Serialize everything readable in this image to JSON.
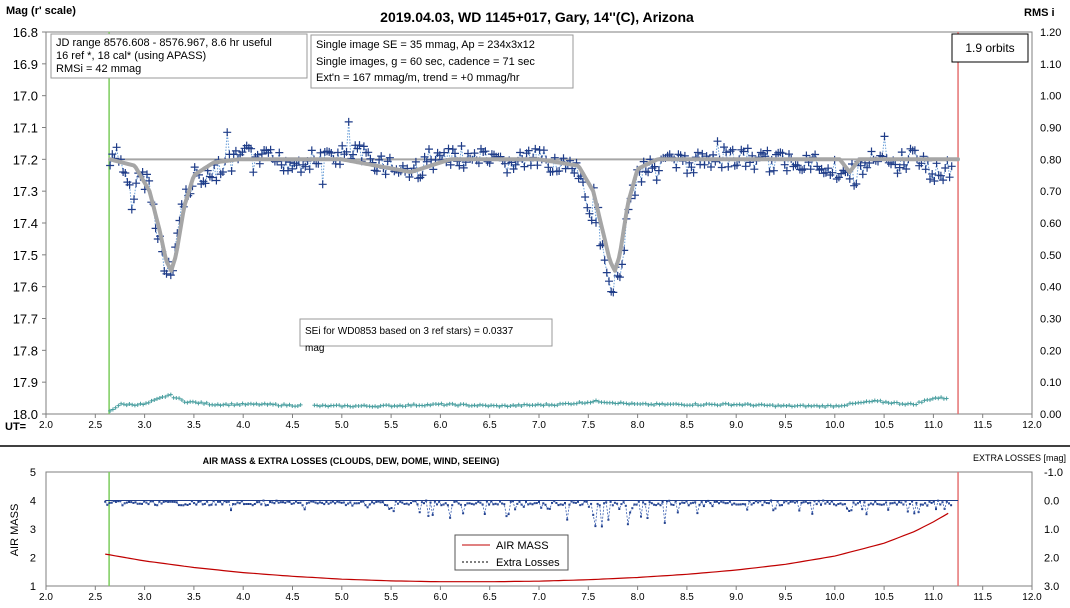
{
  "top": {
    "title": "2019.04.03, WD 1145+017, Gary, 14''(C), Arizona",
    "ylabel_left": "Mag (r' scale)",
    "ylabel_right": "RMS i",
    "ut_label": "UT=",
    "info_box_1": [
      "JD range 8576.608 - 8576.967, 8.6 hr useful",
      "16 ref *, 18 cal* (using APASS)",
      "RMSi = 42 mmag"
    ],
    "info_box_2": [
      "Single image SE = 35 mmag, Ap = 234x3x12",
      "Single images, g = 60 sec, cadence = 71 sec",
      "Ext'n = 167 mmag/m, trend = +0 mmag/hr"
    ],
    "orbits_box": "1.9 orbits",
    "sei_box": [
      "SEi for WD0853 based on 3 ref stars) = 0.0337",
      "mag"
    ]
  },
  "bottom": {
    "title": "AIR MASS & EXTRA LOSSES (CLOUDS, DEW, DOME, WIND, SEEING)",
    "ylabel_left": "AIR MASS",
    "ylabel_right": "EXTRA LOSSES [mag]",
    "legend": [
      "AIR MASS",
      "Extra Losses"
    ]
  },
  "chart_data": [
    {
      "type": "scatter",
      "title": "2019.04.03, WD 1145+017, Gary, 14''(C), Arizona",
      "xlabel": "UT=",
      "ylabel": "Mag (r' scale)",
      "y2label": "RMS i",
      "xlim": [
        2.0,
        12.0
      ],
      "ylim": [
        18.0,
        16.8
      ],
      "y2lim": [
        0.0,
        1.2
      ],
      "x_ticks": [
        "2.0",
        "2.5",
        "3.0",
        "3.5",
        "4.0",
        "4.5",
        "5.0",
        "5.5",
        "6.0",
        "6.5",
        "7.0",
        "7.5",
        "8.0",
        "8.5",
        "9.0",
        "9.5",
        "10.0",
        "10.5",
        "11.0",
        "11.5",
        "12.0"
      ],
      "y_ticks": [
        "16.8",
        "16.9",
        "17.0",
        "17.1",
        "17.2",
        "17.3",
        "17.4",
        "17.5",
        "17.6",
        "17.7",
        "17.8",
        "17.9",
        "18.0"
      ],
      "y2_ticks": [
        "1.20",
        "1.10",
        "1.00",
        "0.90",
        "0.80",
        "0.70",
        "0.60",
        "0.50",
        "0.40",
        "0.30",
        "0.20",
        "0.10",
        "0.00"
      ],
      "baseline_mag": 17.2,
      "start_marker_ut": 2.64,
      "end_marker_ut": 11.25,
      "series": [
        {
          "kind": "measurements",
          "note": "blue + markers joined by dotted line; values sampled",
          "x": [
            2.65,
            2.72,
            2.8,
            2.88,
            2.96,
            3.04,
            3.12,
            3.18,
            3.22,
            3.26,
            3.3,
            3.34,
            3.38,
            3.44,
            3.52,
            3.62,
            3.72,
            3.85,
            4.0,
            4.2,
            4.5,
            4.8,
            5.1,
            5.4,
            5.7,
            6.0,
            6.3,
            6.6,
            6.9,
            7.2,
            7.4,
            7.55,
            7.65,
            7.72,
            7.78,
            7.83,
            7.88,
            7.95,
            8.05,
            8.2,
            8.5,
            8.8,
            9.1,
            9.4,
            9.7,
            10.0,
            10.2,
            10.4,
            10.6,
            10.8,
            11.0,
            11.15
          ],
          "values": [
            17.22,
            17.19,
            17.24,
            17.3,
            17.25,
            17.27,
            17.4,
            17.5,
            17.58,
            17.56,
            17.5,
            17.42,
            17.35,
            17.29,
            17.25,
            17.27,
            17.24,
            17.22,
            17.19,
            17.2,
            17.21,
            17.2,
            17.18,
            17.21,
            17.24,
            17.2,
            17.19,
            17.22,
            17.2,
            17.21,
            17.25,
            17.38,
            17.5,
            17.58,
            17.6,
            17.54,
            17.42,
            17.3,
            17.23,
            17.2,
            17.22,
            17.19,
            17.2,
            17.21,
            17.2,
            17.23,
            17.25,
            17.2,
            17.22,
            17.19,
            17.24,
            17.23
          ]
        },
        {
          "kind": "model",
          "note": "thick gray fitted curve",
          "x": [
            2.65,
            2.9,
            3.05,
            3.15,
            3.22,
            3.27,
            3.32,
            3.4,
            3.5,
            3.7,
            3.95,
            4.2,
            5.0,
            5.7,
            6.1,
            7.0,
            7.4,
            7.55,
            7.65,
            7.72,
            7.77,
            7.82,
            7.9,
            8.0,
            8.2,
            9.5,
            10.05,
            10.15,
            10.25,
            10.4,
            11.25
          ],
          "values": [
            17.2,
            17.22,
            17.3,
            17.42,
            17.52,
            17.55,
            17.5,
            17.35,
            17.25,
            17.21,
            17.2,
            17.2,
            17.2,
            17.24,
            17.2,
            17.2,
            17.22,
            17.3,
            17.43,
            17.52,
            17.55,
            17.5,
            17.34,
            17.23,
            17.2,
            17.2,
            17.2,
            17.24,
            17.2,
            17.2,
            17.2
          ]
        },
        {
          "kind": "rms",
          "axis": "right",
          "note": "teal small crosses near bottom (RMS i)",
          "x": [
            2.65,
            2.75,
            3.0,
            3.25,
            3.4,
            3.7,
            4.2,
            4.8,
            5.4,
            6.0,
            6.6,
            7.2,
            7.6,
            8.0,
            8.5,
            9.0,
            9.5,
            10.0,
            10.4,
            10.8,
            11.0,
            11.15
          ],
          "values": [
            0.01,
            0.03,
            0.03,
            0.06,
            0.04,
            0.03,
            0.03,
            0.025,
            0.025,
            0.03,
            0.025,
            0.03,
            0.04,
            0.03,
            0.03,
            0.03,
            0.025,
            0.025,
            0.04,
            0.03,
            0.05,
            0.05
          ]
        }
      ]
    },
    {
      "type": "line",
      "title": "AIR MASS & EXTRA LOSSES (CLOUDS, DEW, DOME, WIND, SEEING)",
      "xlabel": "",
      "ylabel": "AIR MASS",
      "y2label": "EXTRA LOSSES [mag]",
      "xlim": [
        2.0,
        12.0
      ],
      "ylim": [
        1,
        5
      ],
      "y2lim": [
        3.0,
        -1.0
      ],
      "x_ticks": [
        "2.0",
        "2.5",
        "3.0",
        "3.5",
        "4.0",
        "4.5",
        "5.0",
        "5.5",
        "6.0",
        "6.5",
        "7.0",
        "7.5",
        "8.0",
        "8.5",
        "9.0",
        "9.5",
        "10.0",
        "10.5",
        "11.0",
        "11.5",
        "12.0"
      ],
      "y_ticks": [
        "5",
        "4",
        "3",
        "2",
        "1"
      ],
      "y2_ticks": [
        "-1.0",
        "0.0",
        "1.0",
        "2.0",
        "3.0"
      ],
      "start_marker_ut": 2.64,
      "end_marker_ut": 11.25,
      "series": [
        {
          "name": "AIR MASS",
          "x": [
            2.6,
            3.0,
            3.5,
            4.0,
            4.5,
            5.0,
            5.5,
            6.0,
            6.5,
            7.0,
            7.5,
            8.0,
            8.5,
            9.0,
            9.5,
            10.0,
            10.5,
            10.8,
            11.0,
            11.2
          ],
          "values": [
            2.12,
            1.88,
            1.65,
            1.47,
            1.34,
            1.24,
            1.18,
            1.15,
            1.15,
            1.17,
            1.22,
            1.3,
            1.41,
            1.56,
            1.76,
            2.05,
            2.5,
            2.9,
            3.25,
            3.65
          ]
        },
        {
          "name": "Extra Losses",
          "axis": "right",
          "x": [
            2.6,
            3.0,
            3.5,
            3.85,
            3.9,
            4.0,
            4.5,
            4.85,
            5.2,
            5.5,
            5.9,
            6.3,
            6.7,
            7.0,
            7.4,
            7.6,
            8.0,
            8.25,
            8.5,
            9.0,
            9.5,
            10.0,
            10.4,
            10.7,
            11.0,
            11.2
          ],
          "values": [
            0.05,
            0.05,
            0.0,
            0.1,
            0.6,
            0.15,
            0.1,
            0.7,
            0.3,
            0.5,
            0.7,
            0.6,
            0.6,
            0.7,
            0.8,
            1.0,
            0.9,
            1.0,
            0.5,
            0.3,
            0.5,
            0.45,
            0.5,
            0.55,
            0.3,
            0.55
          ]
        }
      ]
    }
  ]
}
